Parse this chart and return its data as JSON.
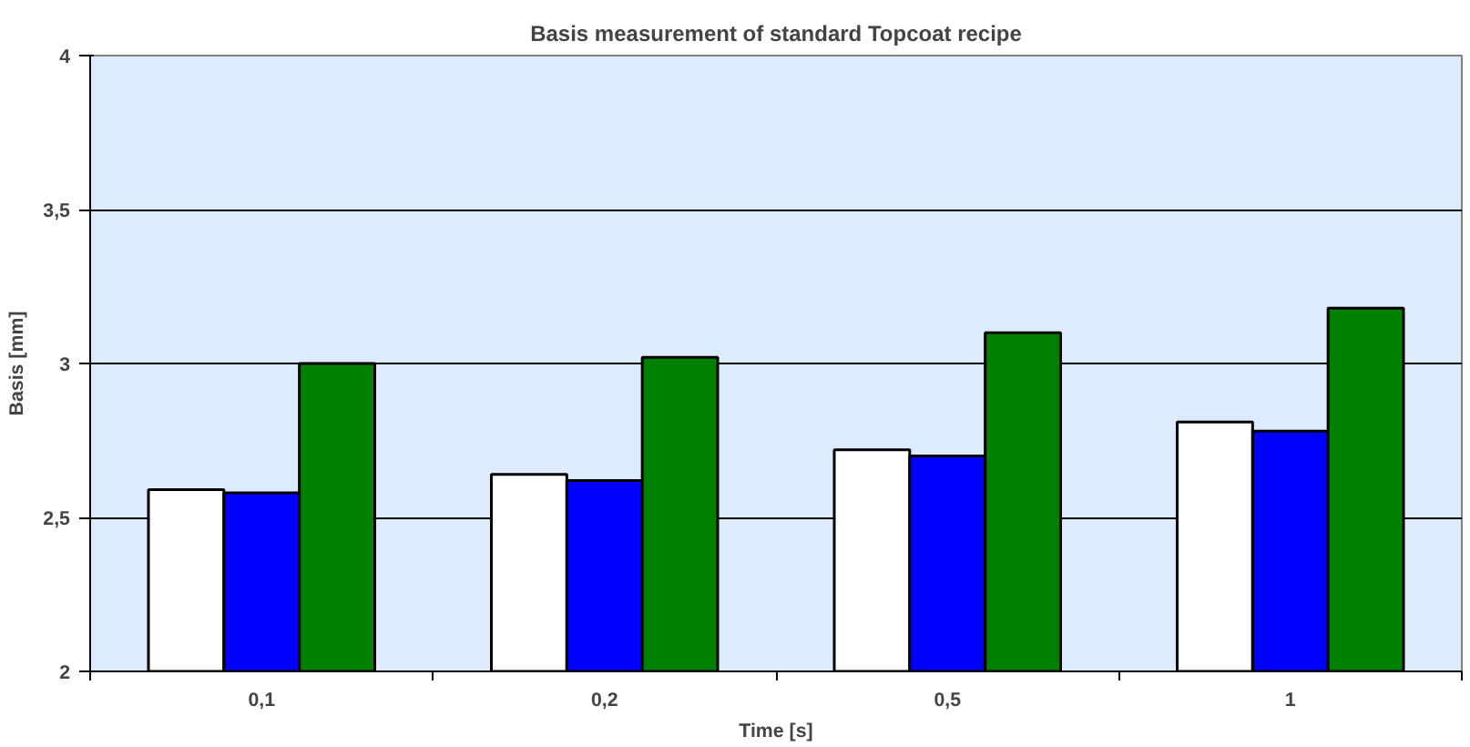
{
  "chart_data": {
    "type": "bar",
    "title": "Basis measurement of standard Topcoat recipe",
    "xlabel": "Time [s]",
    "ylabel": "Basis [mm]",
    "categories": [
      "0,1",
      "0,2",
      "0,5",
      "1"
    ],
    "series": [
      {
        "color": "#ffffff",
        "values": [
          2.59,
          2.64,
          2.72,
          2.81
        ]
      },
      {
        "color": "#0000ff",
        "values": [
          2.58,
          2.62,
          2.7,
          2.78
        ]
      },
      {
        "color": "#008000",
        "values": [
          3.0,
          3.02,
          3.1,
          3.18
        ]
      }
    ],
    "ylim": [
      2,
      4
    ],
    "yticks": [
      2,
      {
        "value": 2.5,
        "label": "2,5"
      },
      3,
      {
        "value": 3.5,
        "label": "3,5"
      },
      4
    ],
    "grid": "y"
  }
}
